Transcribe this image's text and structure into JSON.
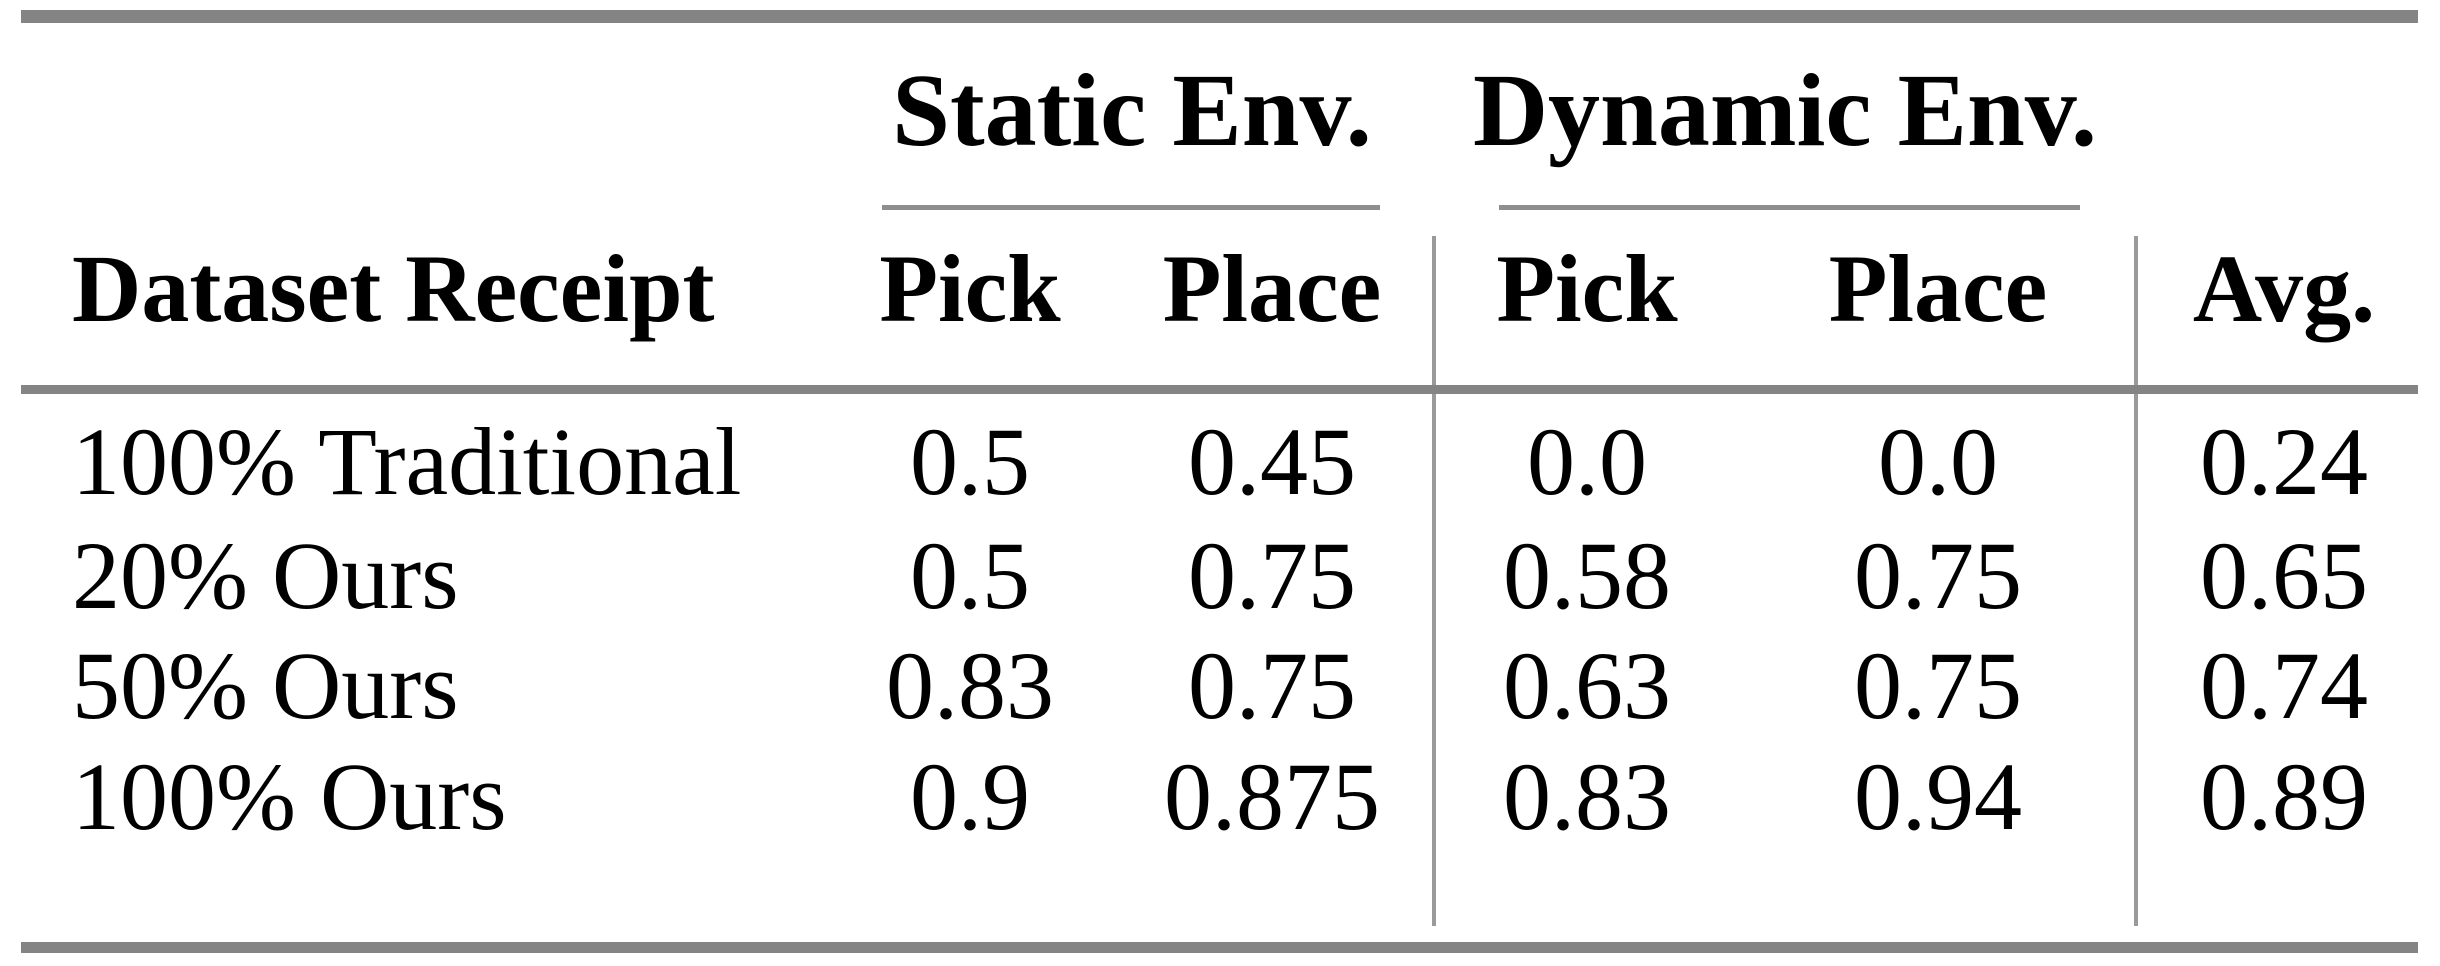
{
  "table": {
    "group_headers": {
      "static": "Static Env.",
      "dynamic": "Dynamic Env."
    },
    "header": {
      "row_label": "Dataset Receipt",
      "static_pick": "Pick",
      "static_place": "Place",
      "dynamic_pick": "Pick",
      "dynamic_place": "Place",
      "avg": "Avg."
    },
    "rows": [
      {
        "label": "100% Traditional",
        "static_pick": "0.5",
        "static_place": "0.45",
        "dynamic_pick": "0.0",
        "dynamic_place": "0.0",
        "avg": "0.24"
      },
      {
        "label": "20% Ours",
        "static_pick": "0.5",
        "static_place": "0.75",
        "dynamic_pick": "0.58",
        "dynamic_place": "0.75",
        "avg": "0.65"
      },
      {
        "label": "50% Ours",
        "static_pick": "0.83",
        "static_place": "0.75",
        "dynamic_pick": "0.63",
        "dynamic_place": "0.75",
        "avg": "0.74"
      },
      {
        "label": "100% Ours",
        "static_pick": "0.9",
        "static_place": "0.875",
        "dynamic_pick": "0.83",
        "dynamic_place": "0.94",
        "avg": "0.89"
      }
    ],
    "colors": {
      "rule_gray": "#848484",
      "vertical_rule_gray": "#9a9a9a",
      "text": "#000000",
      "background": "#ffffff"
    }
  },
  "chart_data": {
    "type": "table",
    "title": "",
    "columns": [
      "Dataset Receipt",
      "Static Env. Pick",
      "Static Env. Place",
      "Dynamic Env. Pick",
      "Dynamic Env. Place",
      "Avg."
    ],
    "rows": [
      [
        "100% Traditional",
        0.5,
        0.45,
        0.0,
        0.0,
        0.24
      ],
      [
        "20% Ours",
        0.5,
        0.75,
        0.58,
        0.75,
        0.65
      ],
      [
        "50% Ours",
        0.83,
        0.75,
        0.63,
        0.75,
        0.74
      ],
      [
        "100% Ours",
        0.9,
        0.875,
        0.83,
        0.94,
        0.89
      ]
    ]
  }
}
